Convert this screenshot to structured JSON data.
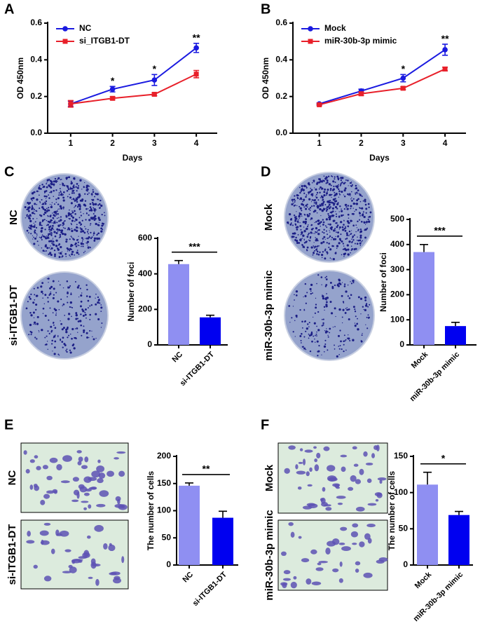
{
  "chart_data": [
    {
      "type": "line",
      "panel": "A",
      "xlabel": "Days",
      "ylabel": "OD 450nm",
      "x": [
        1,
        2,
        3,
        4
      ],
      "xlim": [
        0.45,
        4.5
      ],
      "xticks": [
        1,
        2,
        3,
        4
      ],
      "ylim": [
        0,
        0.6
      ],
      "yticks": [
        {
          "value": 0,
          "label": "0.0"
        },
        {
          "value": 0.2,
          "label": "0.2"
        },
        {
          "value": 0.4,
          "label": "0.4"
        },
        {
          "value": 0.6,
          "label": "0.6"
        }
      ],
      "legend": "upper left",
      "series": [
        {
          "name": "NC",
          "color": "#1a1ae0",
          "marker": "circle",
          "values": [
            0.16,
            0.24,
            0.29,
            0.465
          ],
          "errors": [
            0.015,
            0.015,
            0.03,
            0.025
          ]
        },
        {
          "name": "si_ITGB1-DT",
          "color": "#e8202a",
          "marker": "square",
          "values": [
            0.16,
            0.19,
            0.212,
            0.322
          ],
          "errors": [
            0.018,
            0.008,
            0.008,
            0.02
          ]
        }
      ],
      "annotations": [
        null,
        "*",
        "*",
        "**"
      ]
    },
    {
      "type": "line",
      "panel": "B",
      "xlabel": "Days",
      "ylabel": "OD 450nm",
      "x": [
        1,
        2,
        3,
        4
      ],
      "xlim": [
        0.37,
        4.5
      ],
      "xticks": [
        1,
        2,
        3,
        4
      ],
      "ylim": [
        0,
        0.6
      ],
      "yticks": [
        {
          "value": 0,
          "label": "0.0"
        },
        {
          "value": 0.2,
          "label": "0.2"
        },
        {
          "value": 0.4,
          "label": "0.4"
        },
        {
          "value": 0.6,
          "label": "0.6"
        }
      ],
      "legend": "upper left",
      "series": [
        {
          "name": "Mock",
          "color": "#1a1ae0",
          "marker": "circle",
          "values": [
            0.16,
            0.23,
            0.3,
            0.455
          ],
          "errors": [
            0.005,
            0.01,
            0.02,
            0.03
          ]
        },
        {
          "name": "miR-30b-3p mimic",
          "color": "#e8202a",
          "marker": "square",
          "values": [
            0.155,
            0.215,
            0.245,
            0.35
          ],
          "errors": [
            0.005,
            0.01,
            0.008,
            0.01
          ]
        }
      ],
      "annotations": [
        null,
        null,
        "*",
        "**"
      ]
    },
    {
      "type": "bar",
      "panel": "C",
      "image_kind": "colony",
      "image_labels": [
        "NC",
        "si-ITGB1-DT"
      ],
      "ylabel": "Number of foci",
      "categories": [
        "NC",
        "si-ITGB1-DT"
      ],
      "values": [
        455,
        155
      ],
      "errors": [
        20,
        12
      ],
      "colors": [
        "#8f8ff2",
        "#0000f0"
      ],
      "ylim": [
        0,
        600
      ],
      "yticks": [
        0,
        200,
        400,
        600
      ],
      "significance": "***"
    },
    {
      "type": "bar",
      "panel": "D",
      "image_kind": "colony",
      "image_labels": [
        "Mock",
        "miR-30b-3p mimic"
      ],
      "ylabel": "Number of foci",
      "categories": [
        "Mock",
        "miR-30b-3p mimic"
      ],
      "values": [
        370,
        75
      ],
      "errors": [
        30,
        15
      ],
      "colors": [
        "#8f8ff2",
        "#0000f0"
      ],
      "ylim": [
        0,
        500
      ],
      "yticks": [
        0,
        100,
        200,
        300,
        400,
        500
      ],
      "significance": "***"
    },
    {
      "type": "bar",
      "panel": "E",
      "image_kind": "micrograph",
      "image_labels": [
        "NC",
        "si-ITGB1-DT"
      ],
      "ylabel": "The number of cells",
      "categories": [
        "NC",
        "si-ITGB1-DT"
      ],
      "values": [
        146,
        87
      ],
      "errors": [
        5,
        12
      ],
      "colors": [
        "#8f8ff2",
        "#0000f0"
      ],
      "ylim": [
        0,
        200
      ],
      "yticks": [
        0,
        50,
        100,
        150,
        200
      ],
      "significance": "**"
    },
    {
      "type": "bar",
      "panel": "F",
      "image_kind": "micrograph",
      "image_labels": [
        "Mock",
        "miR-30b-3p mimic"
      ],
      "ylabel": "The number of cells",
      "categories": [
        "Mock",
        "miR-30b-3p mimic"
      ],
      "values": [
        111,
        69
      ],
      "errors": [
        17,
        5
      ],
      "colors": [
        "#8f8ff2",
        "#0000f0"
      ],
      "ylim": [
        0,
        150
      ],
      "yticks": [
        0,
        50,
        100,
        150
      ],
      "significance": "*"
    }
  ]
}
